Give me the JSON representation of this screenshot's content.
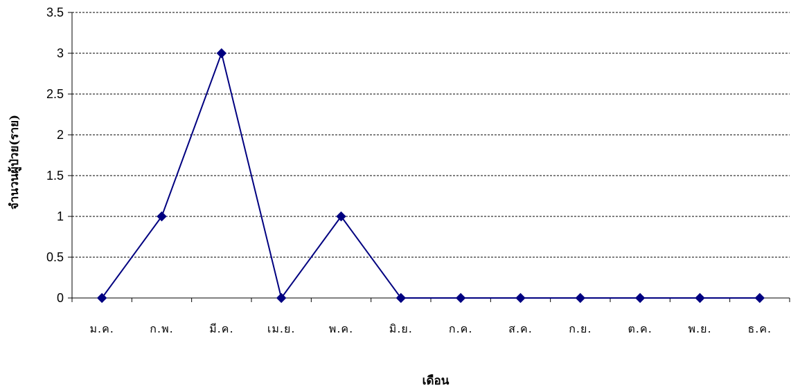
{
  "chart_data": {
    "type": "line",
    "categories": [
      "ม.ค.",
      "ก.พ.",
      "มี.ค.",
      "เม.ย.",
      "พ.ค.",
      "มิ.ย.",
      "ก.ค.",
      "ส.ค.",
      "ก.ย.",
      "ต.ค.",
      "พ.ย.",
      "ธ.ค."
    ],
    "series": [
      {
        "values": [
          0,
          1,
          3,
          0,
          1,
          0,
          0,
          0,
          0,
          0,
          0,
          0
        ],
        "color": "#000080",
        "marker": "diamond"
      }
    ],
    "ylim": [
      0,
      3.5
    ],
    "yticks": [
      "0",
      "0.5",
      "1",
      "1.5",
      "2",
      "2.5",
      "3",
      "3.5"
    ],
    "ytick_values": [
      0,
      0.5,
      1,
      1.5,
      2,
      2.5,
      3,
      3.5
    ],
    "xlabel": "เดือน",
    "ylabel": "จำนวนผู้ป่วย(ราย)",
    "grid": true,
    "grid_style": "dashed",
    "legend": "none"
  }
}
